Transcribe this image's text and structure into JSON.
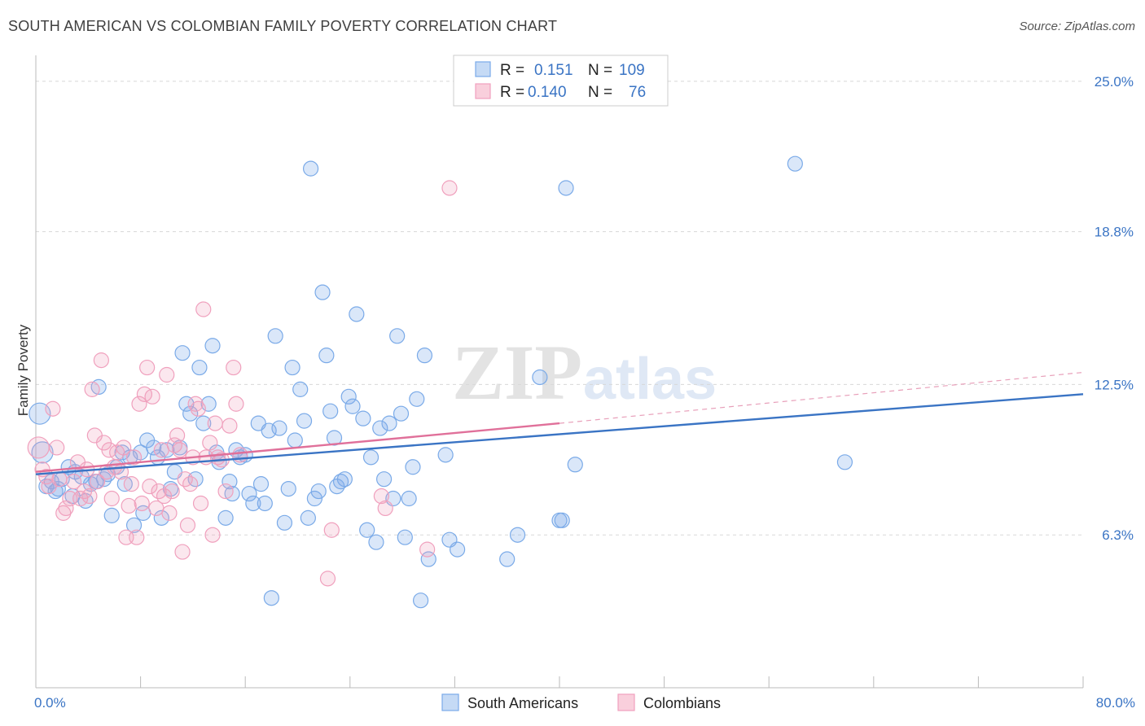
{
  "header": {
    "title": "SOUTH AMERICAN VS COLOMBIAN FAMILY POVERTY CORRELATION CHART",
    "source": "Source: ZipAtlas.com"
  },
  "watermark": {
    "zip": "ZIP",
    "atlas": "atlas"
  },
  "legend": {
    "rows": [
      {
        "r_label": "R =",
        "r_value": "0.151",
        "n_label": "N =",
        "n_value": "109",
        "color": "#7aaae8"
      },
      {
        "r_label": "R =",
        "r_value": "0.140",
        "n_label": "N =",
        "n_value": "76",
        "color": "#f0a0bd"
      }
    ]
  },
  "bottom_legend": [
    "South Americans",
    "Colombians"
  ],
  "chart_data": {
    "type": "scatter",
    "title": "SOUTH AMERICAN VS COLOMBIAN FAMILY POVERTY CORRELATION CHART",
    "xlabel": "",
    "ylabel": "Family Poverty",
    "xlim": [
      0,
      80
    ],
    "ylim": [
      0,
      25.8
    ],
    "x_tick_labels": [
      "0.0%",
      "80.0%"
    ],
    "y_ticks": [
      6.3,
      12.5,
      18.8,
      25.0
    ],
    "y_tick_labels": [
      "6.3%",
      "12.5%",
      "18.8%",
      "25.0%"
    ],
    "grid": true,
    "legend_position": "top-center",
    "series": [
      {
        "name": "South Americans",
        "color": "#7aaae8",
        "r": 0.151,
        "n": 109,
        "trend": {
          "x": [
            0,
            80
          ],
          "y": [
            8.8,
            12.1
          ],
          "style": "solid"
        },
        "points": [
          [
            0.3,
            11.3
          ],
          [
            0.5,
            9.7
          ],
          [
            0.8,
            8.3
          ],
          [
            1.2,
            8.5
          ],
          [
            1.5,
            8.1
          ],
          [
            1.7,
            8.2
          ],
          [
            2.0,
            8.6
          ],
          [
            2.5,
            9.1
          ],
          [
            2.8,
            7.9
          ],
          [
            3.0,
            8.9
          ],
          [
            3.5,
            8.7
          ],
          [
            3.8,
            7.7
          ],
          [
            4.2,
            8.4
          ],
          [
            4.6,
            8.5
          ],
          [
            4.8,
            12.4
          ],
          [
            5.2,
            8.6
          ],
          [
            5.5,
            8.8
          ],
          [
            5.8,
            7.1
          ],
          [
            6.2,
            9.1
          ],
          [
            6.6,
            9.7
          ],
          [
            6.8,
            8.4
          ],
          [
            7.2,
            9.5
          ],
          [
            7.5,
            6.7
          ],
          [
            8.0,
            9.7
          ],
          [
            8.2,
            7.2
          ],
          [
            8.5,
            10.2
          ],
          [
            9.0,
            9.9
          ],
          [
            9.3,
            9.5
          ],
          [
            9.6,
            7.0
          ],
          [
            10.0,
            9.8
          ],
          [
            10.3,
            8.2
          ],
          [
            10.6,
            8.9
          ],
          [
            11.0,
            9.9
          ],
          [
            11.2,
            13.8
          ],
          [
            11.5,
            11.7
          ],
          [
            11.8,
            11.3
          ],
          [
            12.2,
            8.6
          ],
          [
            12.5,
            13.2
          ],
          [
            12.8,
            10.9
          ],
          [
            13.2,
            11.7
          ],
          [
            13.5,
            14.1
          ],
          [
            13.8,
            9.7
          ],
          [
            14.0,
            9.3
          ],
          [
            14.5,
            7.0
          ],
          [
            14.8,
            8.5
          ],
          [
            15.0,
            8.0
          ],
          [
            15.3,
            9.8
          ],
          [
            15.6,
            9.5
          ],
          [
            16.0,
            9.6
          ],
          [
            16.3,
            8.0
          ],
          [
            16.6,
            7.6
          ],
          [
            17.0,
            10.9
          ],
          [
            17.2,
            8.4
          ],
          [
            17.5,
            7.6
          ],
          [
            17.8,
            10.6
          ],
          [
            18.0,
            3.7
          ],
          [
            18.3,
            14.5
          ],
          [
            18.6,
            10.7
          ],
          [
            19.0,
            6.8
          ],
          [
            19.3,
            8.2
          ],
          [
            19.6,
            13.2
          ],
          [
            19.8,
            10.2
          ],
          [
            20.2,
            12.3
          ],
          [
            20.5,
            11.0
          ],
          [
            20.8,
            7.0
          ],
          [
            21.0,
            21.4
          ],
          [
            21.3,
            7.8
          ],
          [
            21.6,
            8.1
          ],
          [
            21.9,
            16.3
          ],
          [
            22.2,
            13.7
          ],
          [
            22.5,
            11.4
          ],
          [
            22.8,
            10.3
          ],
          [
            23.0,
            8.3
          ],
          [
            23.3,
            8.5
          ],
          [
            23.6,
            8.6
          ],
          [
            23.9,
            12.0
          ],
          [
            24.2,
            11.6
          ],
          [
            24.5,
            15.4
          ],
          [
            25.0,
            11.1
          ],
          [
            25.3,
            6.5
          ],
          [
            25.6,
            9.5
          ],
          [
            26.0,
            6.0
          ],
          [
            26.3,
            10.7
          ],
          [
            26.6,
            8.6
          ],
          [
            27.0,
            10.9
          ],
          [
            27.3,
            7.8
          ],
          [
            27.6,
            14.5
          ],
          [
            27.9,
            11.3
          ],
          [
            28.2,
            6.2
          ],
          [
            28.5,
            7.8
          ],
          [
            28.8,
            9.1
          ],
          [
            29.1,
            11.9
          ],
          [
            29.4,
            3.6
          ],
          [
            29.7,
            13.7
          ],
          [
            30.0,
            5.3
          ],
          [
            31.3,
            9.6
          ],
          [
            31.6,
            6.1
          ],
          [
            32.2,
            5.7
          ],
          [
            36.0,
            5.3
          ],
          [
            36.8,
            6.3
          ],
          [
            38.5,
            12.8
          ],
          [
            40.0,
            6.9
          ],
          [
            40.2,
            6.9
          ],
          [
            40.5,
            20.6
          ],
          [
            41.2,
            9.2
          ],
          [
            58.0,
            21.6
          ],
          [
            61.8,
            9.3
          ]
        ]
      },
      {
        "name": "Colombians",
        "color": "#f0a0bd",
        "r": 0.14,
        "n": 76,
        "trend": {
          "x": [
            0,
            40
          ],
          "y": [
            8.9,
            10.9
          ],
          "style": "solid",
          "extended": {
            "x": [
              40,
              80
            ],
            "y": [
              10.9,
              13.0
            ],
            "style": "dashed"
          }
        },
        "points": [
          [
            0.2,
            9.9
          ],
          [
            0.5,
            9.0
          ],
          [
            0.8,
            8.7
          ],
          [
            1.0,
            8.3
          ],
          [
            1.3,
            11.5
          ],
          [
            1.6,
            9.9
          ],
          [
            1.8,
            8.6
          ],
          [
            2.1,
            7.2
          ],
          [
            2.3,
            7.4
          ],
          [
            2.6,
            7.8
          ],
          [
            2.9,
            8.5
          ],
          [
            3.2,
            9.3
          ],
          [
            3.4,
            7.8
          ],
          [
            3.7,
            8.1
          ],
          [
            3.9,
            9.0
          ],
          [
            4.1,
            7.9
          ],
          [
            4.3,
            12.3
          ],
          [
            4.5,
            10.4
          ],
          [
            4.7,
            8.5
          ],
          [
            5.0,
            13.5
          ],
          [
            5.2,
            10.1
          ],
          [
            5.4,
            8.9
          ],
          [
            5.6,
            9.8
          ],
          [
            5.8,
            7.8
          ],
          [
            6.0,
            9.1
          ],
          [
            6.2,
            9.7
          ],
          [
            6.5,
            8.9
          ],
          [
            6.7,
            9.9
          ],
          [
            6.9,
            6.2
          ],
          [
            7.1,
            7.5
          ],
          [
            7.3,
            8.4
          ],
          [
            7.5,
            9.5
          ],
          [
            7.7,
            6.2
          ],
          [
            7.9,
            11.7
          ],
          [
            8.1,
            7.6
          ],
          [
            8.3,
            12.1
          ],
          [
            8.5,
            13.2
          ],
          [
            8.7,
            8.3
          ],
          [
            8.9,
            12.0
          ],
          [
            9.2,
            7.4
          ],
          [
            9.4,
            8.1
          ],
          [
            9.6,
            9.8
          ],
          [
            9.8,
            7.9
          ],
          [
            10.0,
            12.9
          ],
          [
            10.2,
            7.2
          ],
          [
            10.4,
            8.1
          ],
          [
            10.6,
            10.0
          ],
          [
            10.8,
            10.4
          ],
          [
            11.0,
            9.8
          ],
          [
            11.2,
            5.6
          ],
          [
            11.4,
            8.6
          ],
          [
            11.6,
            6.7
          ],
          [
            11.8,
            8.4
          ],
          [
            12.0,
            9.5
          ],
          [
            12.2,
            11.7
          ],
          [
            12.4,
            11.5
          ],
          [
            12.6,
            7.6
          ],
          [
            12.8,
            15.6
          ],
          [
            13.0,
            9.5
          ],
          [
            13.3,
            10.1
          ],
          [
            13.5,
            6.3
          ],
          [
            13.7,
            10.9
          ],
          [
            13.9,
            9.5
          ],
          [
            14.2,
            9.4
          ],
          [
            14.5,
            8.1
          ],
          [
            14.8,
            10.8
          ],
          [
            15.1,
            13.2
          ],
          [
            15.3,
            11.7
          ],
          [
            15.6,
            9.6
          ],
          [
            22.3,
            4.5
          ],
          [
            22.6,
            6.5
          ],
          [
            26.4,
            7.9
          ],
          [
            26.7,
            7.4
          ],
          [
            29.9,
            5.7
          ],
          [
            31.6,
            20.6
          ]
        ]
      }
    ]
  }
}
